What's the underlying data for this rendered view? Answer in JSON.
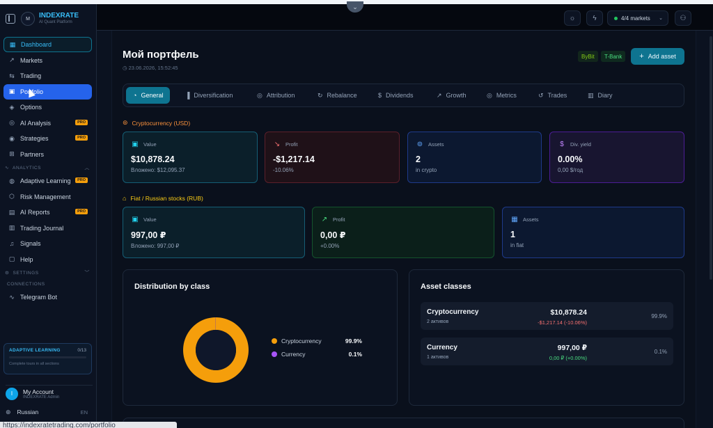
{
  "brand": {
    "name": "INDEXRATE",
    "subtitle": "AI Quant Platform",
    "logo_text": "M"
  },
  "sidebar": {
    "items": [
      {
        "label": "Dashboard",
        "icon": "grid-icon"
      },
      {
        "label": "Markets",
        "icon": "trend-up-icon"
      },
      {
        "label": "Trading",
        "icon": "arrows-icon"
      },
      {
        "label": "Portfolio",
        "icon": "briefcase-icon"
      },
      {
        "label": "Options",
        "icon": "layers-icon"
      },
      {
        "label": "AI Analysis",
        "icon": "brain-icon",
        "badge": "PRO"
      },
      {
        "label": "Strategies",
        "icon": "compass-icon",
        "badge": "PRO"
      },
      {
        "label": "Partners",
        "icon": "gift-icon"
      }
    ],
    "analytics_header": "ANALYTICS",
    "analytics_items": [
      {
        "label": "Adaptive Learning",
        "icon": "graduation-icon",
        "badge": "PRO"
      },
      {
        "label": "Risk Management",
        "icon": "shield-icon"
      },
      {
        "label": "AI Reports",
        "icon": "file-icon",
        "badge": "PRO"
      },
      {
        "label": "Trading Journal",
        "icon": "book-icon"
      },
      {
        "label": "Signals",
        "icon": "bell-icon"
      },
      {
        "label": "Help",
        "icon": "help-icon"
      }
    ],
    "settings_header": "SETTINGS",
    "connections_header": "CONNECTIONS",
    "connection_items": [
      {
        "label": "Telegram Bot",
        "icon": "pulse-icon"
      }
    ],
    "learning": {
      "title": "ADAPTIVE LEARNING",
      "count": "0/13",
      "subtitle": "Complete tours in all sections",
      "progress": 0
    },
    "account": {
      "initial": "I",
      "name": "My Account",
      "role": "INDEXRATE Admin"
    },
    "language": {
      "label": "Russian",
      "code": "EN"
    }
  },
  "header": {
    "markets_label": "4/4 markets"
  },
  "page": {
    "title": "Мой портфель",
    "date": "23.06.2026, 15:52:45",
    "badges": [
      "ByBit",
      "T-Bank"
    ],
    "add_asset": "Add asset"
  },
  "tabs": [
    {
      "label": "General",
      "icon": "pie-icon"
    },
    {
      "label": "Diversification",
      "icon": "bar-chart-icon"
    },
    {
      "label": "Attribution",
      "icon": "target-icon"
    },
    {
      "label": "Rebalance",
      "icon": "refresh-icon"
    },
    {
      "label": "Dividends",
      "icon": "dollar-icon"
    },
    {
      "label": "Growth",
      "icon": "trend-up-icon"
    },
    {
      "label": "Metrics",
      "icon": "target-icon"
    },
    {
      "label": "Trades",
      "icon": "history-icon"
    },
    {
      "label": "Diary",
      "icon": "book-icon"
    }
  ],
  "crypto": {
    "section_label": "Cryptocurrency (USD)",
    "cards": [
      {
        "label": "Value",
        "value": "$10,878.24",
        "sub": "Вложено: $12,095.37"
      },
      {
        "label": "Profit",
        "value": "-$1,217.14",
        "sub": "-10.06%"
      },
      {
        "label": "Assets",
        "value": "2",
        "sub": "in crypto"
      },
      {
        "label": "Div. yield",
        "value": "0.00%",
        "sub": "0,00 $/год"
      }
    ]
  },
  "fiat": {
    "section_label": "Fiat / Russian stocks (RUB)",
    "cards": [
      {
        "label": "Value",
        "value": "997,00 ₽",
        "sub": "Вложено: 997,00 ₽"
      },
      {
        "label": "Profit",
        "value": "0,00 ₽",
        "sub": "+0.00%"
      },
      {
        "label": "Assets",
        "value": "1",
        "sub": "in fiat"
      }
    ]
  },
  "distribution": {
    "title": "Distribution by class",
    "legend": [
      {
        "label": "Cryptocurrency",
        "pct": "99.9%",
        "color": "#f59e0b"
      },
      {
        "label": "Currency",
        "pct": "0.1%",
        "color": "#a855f7"
      }
    ]
  },
  "chart_data": {
    "type": "pie",
    "categories": [
      "Cryptocurrency",
      "Currency"
    ],
    "values": [
      99.9,
      0.1
    ],
    "colors": [
      "#f59e0b",
      "#a855f7"
    ],
    "legend": "right"
  },
  "asset_classes": {
    "title": "Asset classes",
    "rows": [
      {
        "name": "Cryptocurrency",
        "count": "2 активов",
        "value": "$10,878.24",
        "change": "-$1,217.14 (-10.06%)",
        "change_color": "#f87171",
        "pct": "99.9%"
      },
      {
        "name": "Currency",
        "count": "1 активов",
        "value": "997,00 ₽",
        "change": "0,00 ₽ (+0.00%)",
        "change_color": "#4ade80",
        "pct": "0.1%"
      }
    ]
  },
  "status_url": "https://indexratetrading.com/portfolio"
}
